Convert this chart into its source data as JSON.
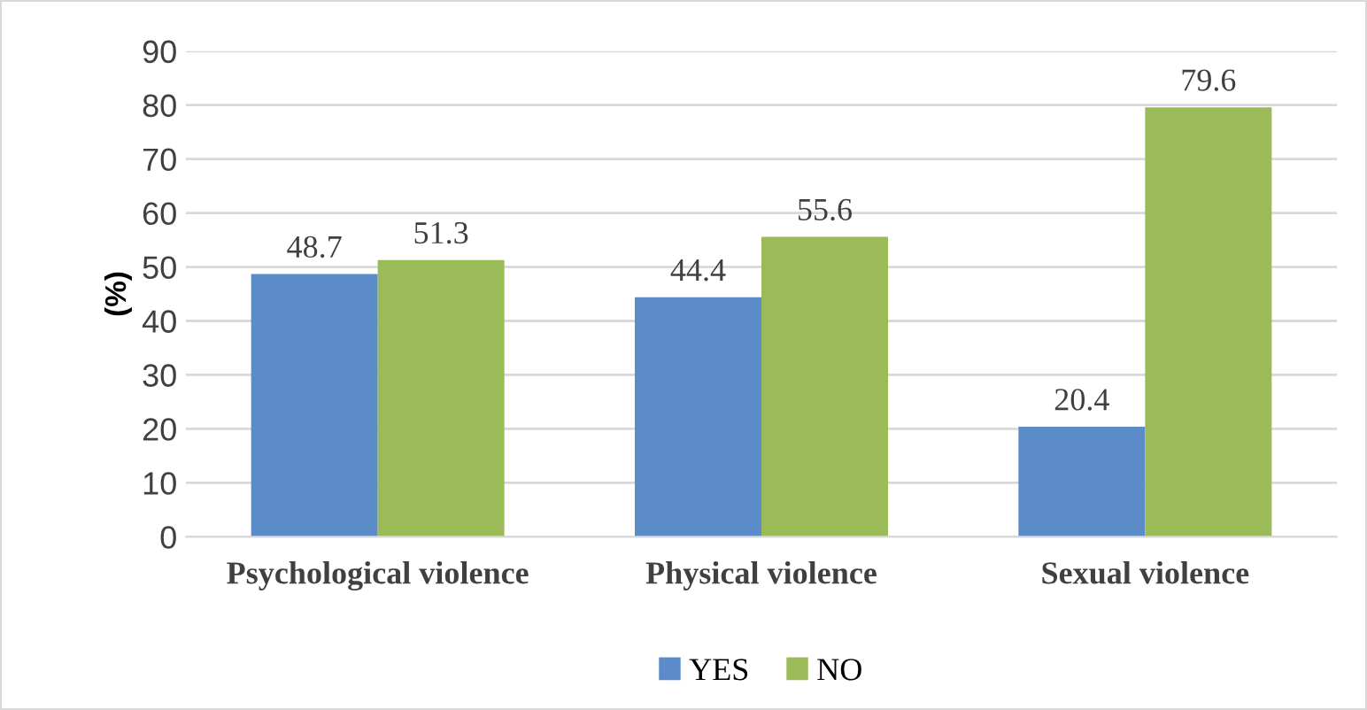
{
  "chart_data": {
    "type": "bar",
    "categories": [
      "Psychological violence",
      "Physical violence",
      "Sexual violence"
    ],
    "series": [
      {
        "name": "YES",
        "color": "#5b8bc8",
        "values": [
          48.7,
          44.4,
          20.4
        ]
      },
      {
        "name": "NO",
        "color": "#9bbb59",
        "values": [
          51.3,
          55.6,
          79.6
        ]
      }
    ],
    "ylabel": "(%)",
    "ylim": [
      0,
      90
    ],
    "yticks": [
      0,
      10,
      20,
      30,
      40,
      50,
      60,
      70,
      80,
      90
    ],
    "grid": "y",
    "legend": "bottom",
    "data_labels": true
  }
}
